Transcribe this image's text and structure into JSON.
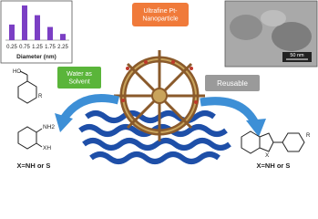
{
  "inset_chart": {
    "type": "bar",
    "categories": [
      "0.25",
      "0.75",
      "1.25",
      "1.75",
      "2.25"
    ],
    "values": [
      45,
      100,
      72,
      38,
      18
    ],
    "color": "#7b3fc4",
    "x_label": "Diameter (nm)"
  },
  "tem_image": {
    "scale_label": "50 nm"
  },
  "badges": {
    "center": "Ultrafine Pt-Nanoparticle",
    "left": "Water as Solvent",
    "right": "Reusable"
  },
  "reactants": {
    "alcohol": {
      "hydroxyl": "HO",
      "substituent": "R"
    },
    "amine": {
      "amino": "NH2",
      "thiol": "XH"
    },
    "caption": "X=NH or S"
  },
  "product": {
    "heteroatom": "X",
    "substituent": "R",
    "caption": "X=NH or S"
  }
}
